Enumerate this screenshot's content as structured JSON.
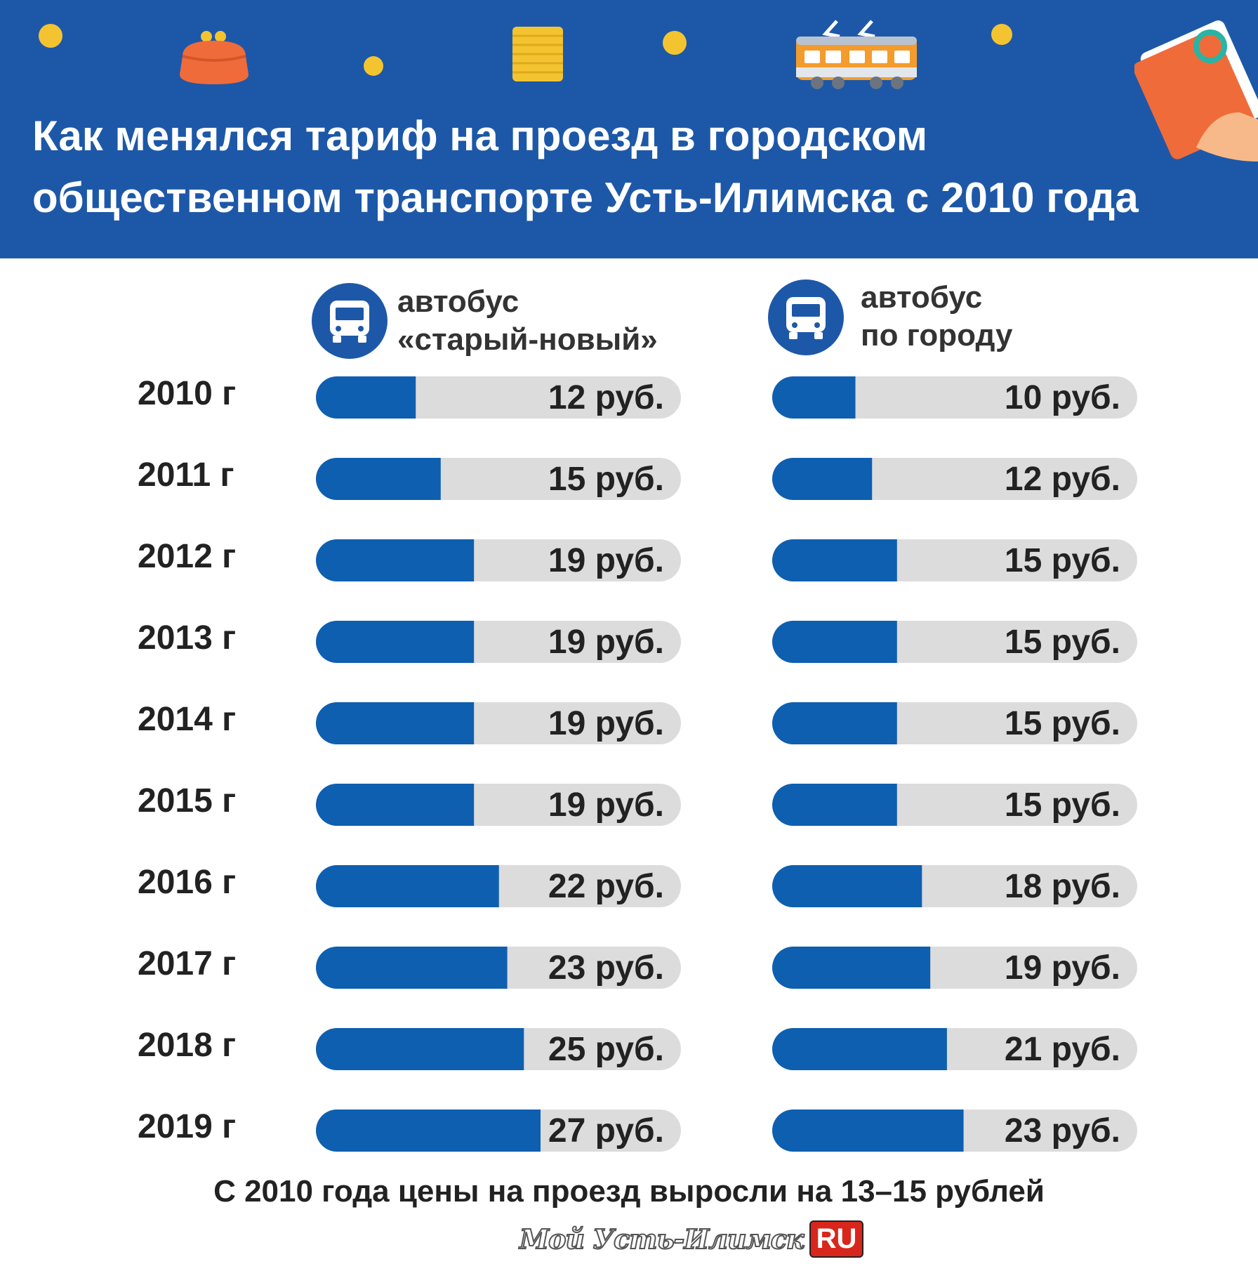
{
  "header": {
    "title_line1": "Как менялся тариф на проезд в городском",
    "title_line2": "общественном транспорте Усть-Илимска с 2010 года"
  },
  "colors": {
    "header_bg": "#1d58a8",
    "bar_fill": "#0e5fb0",
    "bar_track": "#dcdcdc",
    "coin": "#f4c430",
    "accent_orange": "#f06b3a"
  },
  "icons": [
    "coin-icon",
    "purse-icon",
    "coin-stack-icon",
    "tram-icon",
    "wallet-icon",
    "bus-icon"
  ],
  "chart_data": {
    "type": "bar",
    "orientation": "horizontal",
    "categories": [
      "2010 г",
      "2011 г",
      "2012 г",
      "2013 г",
      "2014 г",
      "2015 г",
      "2016 г",
      "2017 г",
      "2018 г",
      "2019 г"
    ],
    "series": [
      {
        "name_line1": "автобус",
        "name_line2": "«старый-новый»",
        "values": [
          12,
          15,
          19,
          19,
          19,
          19,
          22,
          23,
          25,
          27
        ],
        "value_labels": [
          "12 руб.",
          "15 руб.",
          "19 руб.",
          "19 руб.",
          "19 руб.",
          "19 руб.",
          "22 руб.",
          "23 руб.",
          "25 руб.",
          "27 руб."
        ]
      },
      {
        "name_line1": "автобус",
        "name_line2": "по городу",
        "values": [
          10,
          12,
          15,
          15,
          15,
          15,
          18,
          19,
          21,
          23
        ],
        "value_labels": [
          "10 руб.",
          "12 руб.",
          "15 руб.",
          "15 руб.",
          "15 руб.",
          "15 руб.",
          "18 руб.",
          "19 руб.",
          "21 руб.",
          "23 руб."
        ]
      }
    ],
    "grid": false,
    "legend_position": "top"
  },
  "footnote": "С 2010 года цены на проезд выросли на 13–15 рублей",
  "logo": {
    "text": "Мой Усть-Илимск",
    "badge": "RU"
  }
}
